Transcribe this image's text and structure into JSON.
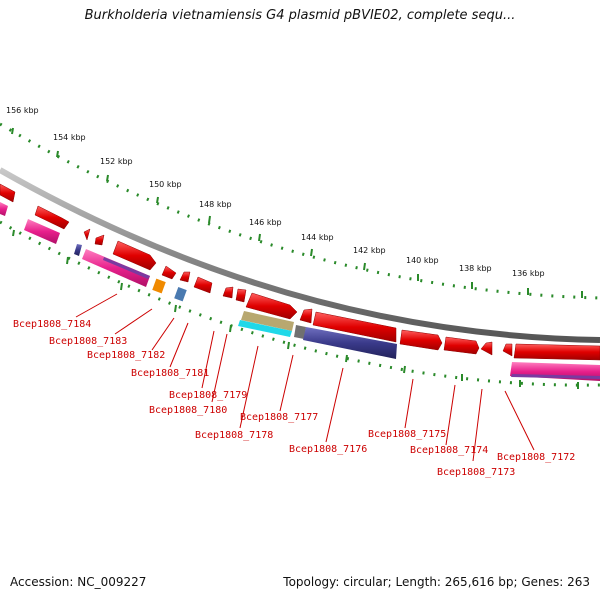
{
  "title": "Burkholderia vietnamiensis G4 plasmid pBVIE02, complete sequ...",
  "footer": {
    "accession": "Accession: NC_009227",
    "summary": "Topology: circular; Length: 265,616 bp; Genes: 263"
  },
  "ruler_labels": [
    "156 kbp",
    "154 kbp",
    "152 kbp",
    "150 kbp",
    "148 kbp",
    "146 kbp",
    "144 kbp",
    "142 kbp",
    "140 kbp",
    "138 kbp",
    "136 kbp"
  ],
  "gene_labels": [
    "Bcep1808_7184",
    "Bcep1808_7183",
    "Bcep1808_7182",
    "Bcep1808_7181",
    "Bcep1808_7179",
    "Bcep1808_7180",
    "Bcep1808_7178",
    "Bcep1808_7177",
    "Bcep1808_7176",
    "Bcep1808_7175",
    "Bcep1808_7174",
    "Bcep1808_7173",
    "Bcep1808_7172"
  ],
  "colors": {
    "cds": "#e00000",
    "pink": "#e8208c",
    "backbone": "#888888",
    "tick": "#2a8a2a",
    "label": "#cc0000",
    "navy": "#3a3a8a",
    "orange": "#f08a00",
    "steelblue": "#4a7ab0",
    "cyan": "#20d8e8",
    "tan": "#b8a870",
    "gray": "#707070"
  }
}
